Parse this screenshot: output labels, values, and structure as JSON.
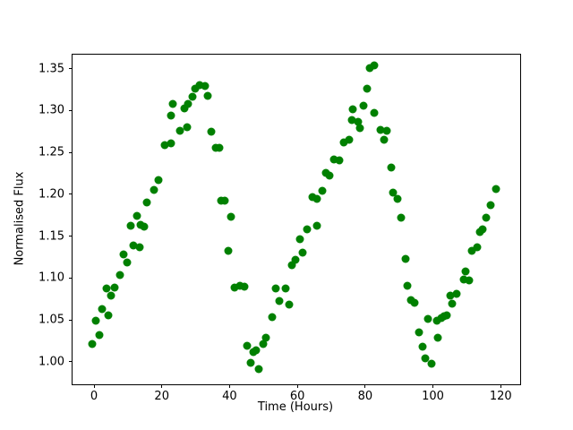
{
  "figure": {
    "background": "#ffffff",
    "spine_color": "#000000",
    "marker_color": "#008000"
  },
  "chart_data": {
    "type": "scatter",
    "title": "",
    "xlabel": "Time (Hours)",
    "ylabel": "Normalised Flux",
    "xlim": [
      -6.34,
      125.74
    ],
    "ylim": [
      0.973,
      1.3668
    ],
    "xticks": [
      0,
      20,
      40,
      60,
      80,
      100,
      120
    ],
    "xtick_labels": [
      "0",
      "20",
      "40",
      "60",
      "80",
      "100",
      "120"
    ],
    "yticks": [
      1.0,
      1.05,
      1.1,
      1.15,
      1.2,
      1.25,
      1.3,
      1.35
    ],
    "ytick_labels": [
      "1.00",
      "1.05",
      "1.10",
      "1.15",
      "1.20",
      "1.25",
      "1.30",
      "1.35"
    ],
    "grid": false,
    "legend": null,
    "marker": "circle",
    "marker_size_px": 9,
    "points": [
      [
        -0.4,
        1.021
      ],
      [
        0.5,
        1.049
      ],
      [
        1.6,
        1.032
      ],
      [
        2.5,
        1.063
      ],
      [
        3.7,
        1.087
      ],
      [
        4.2,
        1.055
      ],
      [
        4.9,
        1.079
      ],
      [
        6.0,
        1.089
      ],
      [
        7.6,
        1.104
      ],
      [
        8.8,
        1.128
      ],
      [
        9.7,
        1.119
      ],
      [
        10.9,
        1.162
      ],
      [
        11.6,
        1.139
      ],
      [
        12.6,
        1.174
      ],
      [
        13.6,
        1.137
      ],
      [
        13.7,
        1.163
      ],
      [
        14.8,
        1.161
      ],
      [
        15.7,
        1.19
      ],
      [
        17.6,
        1.205
      ],
      [
        18.9,
        1.217
      ],
      [
        20.9,
        1.259
      ],
      [
        22.7,
        1.261
      ],
      [
        22.7,
        1.294
      ],
      [
        23.2,
        1.308
      ],
      [
        25.4,
        1.276
      ],
      [
        26.7,
        1.303
      ],
      [
        27.4,
        1.28
      ],
      [
        27.7,
        1.308
      ],
      [
        29.1,
        1.317
      ],
      [
        29.8,
        1.326
      ],
      [
        31.1,
        1.33
      ],
      [
        32.7,
        1.329
      ],
      [
        33.5,
        1.318
      ],
      [
        34.6,
        1.275
      ],
      [
        35.9,
        1.256
      ],
      [
        37.0,
        1.255
      ],
      [
        37.6,
        1.192
      ],
      [
        38.5,
        1.192
      ],
      [
        39.7,
        1.132
      ],
      [
        40.5,
        1.173
      ],
      [
        41.6,
        1.089
      ],
      [
        43.0,
        1.091
      ],
      [
        44.3,
        1.09
      ],
      [
        45.2,
        1.019
      ],
      [
        46.2,
        0.999
      ],
      [
        46.9,
        1.011
      ],
      [
        47.8,
        1.014
      ],
      [
        48.5,
        0.991
      ],
      [
        49.8,
        1.021
      ],
      [
        50.6,
        1.029
      ],
      [
        52.6,
        1.053
      ],
      [
        53.5,
        1.087
      ],
      [
        54.7,
        1.072
      ],
      [
        56.6,
        1.087
      ],
      [
        57.7,
        1.068
      ],
      [
        58.4,
        1.115
      ],
      [
        59.4,
        1.122
      ],
      [
        60.8,
        1.146
      ],
      [
        61.5,
        1.13
      ],
      [
        62.8,
        1.158
      ],
      [
        64.5,
        1.197
      ],
      [
        65.7,
        1.162
      ],
      [
        65.7,
        1.194
      ],
      [
        67.4,
        1.204
      ],
      [
        68.5,
        1.226
      ],
      [
        69.5,
        1.222
      ],
      [
        70.7,
        1.242
      ],
      [
        72.3,
        1.241
      ],
      [
        73.8,
        1.262
      ],
      [
        75.4,
        1.265
      ],
      [
        76.0,
        1.289
      ],
      [
        76.4,
        1.301
      ],
      [
        78.0,
        1.287
      ],
      [
        78.4,
        1.279
      ],
      [
        79.5,
        1.306
      ],
      [
        80.6,
        1.326
      ],
      [
        81.3,
        1.351
      ],
      [
        82.6,
        1.354
      ],
      [
        82.8,
        1.297
      ],
      [
        84.5,
        1.277
      ],
      [
        85.7,
        1.265
      ],
      [
        86.4,
        1.276
      ],
      [
        87.7,
        1.232
      ],
      [
        88.3,
        1.202
      ],
      [
        89.6,
        1.194
      ],
      [
        90.7,
        1.172
      ],
      [
        91.8,
        1.123
      ],
      [
        92.5,
        1.091
      ],
      [
        93.4,
        1.074
      ],
      [
        94.6,
        1.07
      ],
      [
        95.8,
        1.035
      ],
      [
        96.9,
        1.018
      ],
      [
        97.8,
        1.004
      ],
      [
        98.4,
        1.051
      ],
      [
        99.6,
        0.998
      ],
      [
        101.1,
        1.049
      ],
      [
        101.5,
        1.029
      ],
      [
        102.4,
        1.052
      ],
      [
        103.3,
        1.054
      ],
      [
        104.1,
        1.055
      ],
      [
        105.2,
        1.079
      ],
      [
        105.7,
        1.069
      ],
      [
        107.0,
        1.081
      ],
      [
        109.0,
        1.098
      ],
      [
        109.6,
        1.108
      ],
      [
        110.7,
        1.097
      ],
      [
        111.6,
        1.132
      ],
      [
        113.1,
        1.137
      ],
      [
        113.8,
        1.155
      ],
      [
        114.6,
        1.158
      ],
      [
        115.8,
        1.172
      ],
      [
        116.9,
        1.187
      ],
      [
        118.5,
        1.206
      ]
    ]
  }
}
